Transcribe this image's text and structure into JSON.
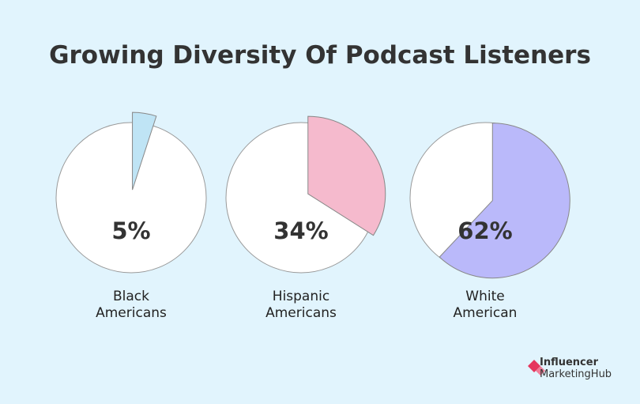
{
  "title": "Growing Diversity Of Podcast Listeners",
  "chart_data": [
    {
      "type": "pie",
      "categories": [
        "Black Americans"
      ],
      "values": [
        5
      ],
      "value_labels": [
        "5%"
      ],
      "color": "#bfe4f5"
    },
    {
      "type": "pie",
      "categories": [
        "Hispanic Americans"
      ],
      "values": [
        34
      ],
      "value_labels": [
        "34%"
      ],
      "color": "#f5bacd"
    },
    {
      "type": "pie",
      "categories": [
        "White American"
      ],
      "values": [
        62
      ],
      "value_labels": [
        "62%"
      ],
      "color": "#bab9fa"
    }
  ],
  "logo": {
    "line1": "Influencer",
    "line2": "MarketingHub"
  }
}
